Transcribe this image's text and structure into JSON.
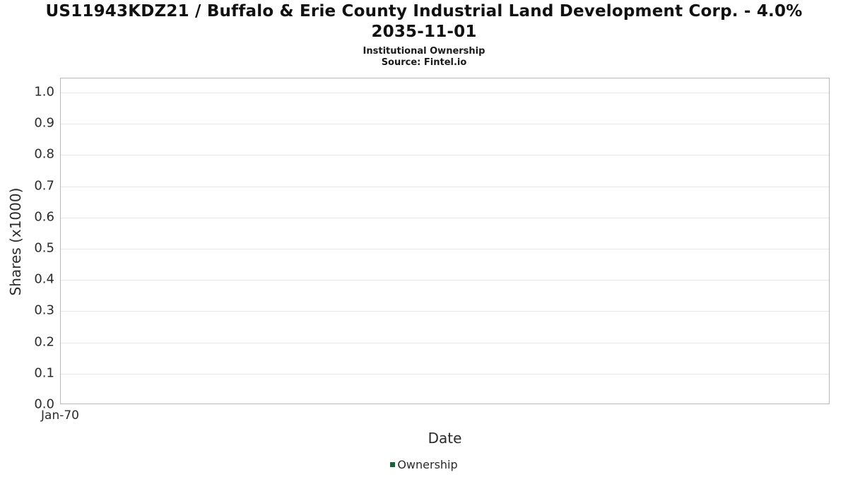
{
  "header": {
    "title_line1": "US11943KDZ21 / Buffalo & Erie County Industrial Land Development Corp. - 4.0%",
    "title_line2": "2035-11-01",
    "subtitle": "Institutional Ownership",
    "source": "Source: Fintel.io"
  },
  "chart_data": {
    "type": "line",
    "title": "US11943KDZ21 / Buffalo & Erie County Industrial Land Development Corp. - 4.0% 2035-11-01",
    "subtitle": "Institutional Ownership",
    "source": "Source: Fintel.io",
    "xlabel": "Date",
    "ylabel": "Shares (x1000)",
    "x_ticks": [
      "Jan-70"
    ],
    "y_ticks": [
      "0.0",
      "0.1",
      "0.2",
      "0.3",
      "0.4",
      "0.5",
      "0.6",
      "0.7",
      "0.8",
      "0.9",
      "1.0"
    ],
    "ylim": [
      0,
      1.045
    ],
    "grid": true,
    "legend_position": "bottom",
    "series": [
      {
        "name": "Ownership",
        "color": "#1f5f3f",
        "x": [],
        "values": []
      }
    ]
  }
}
